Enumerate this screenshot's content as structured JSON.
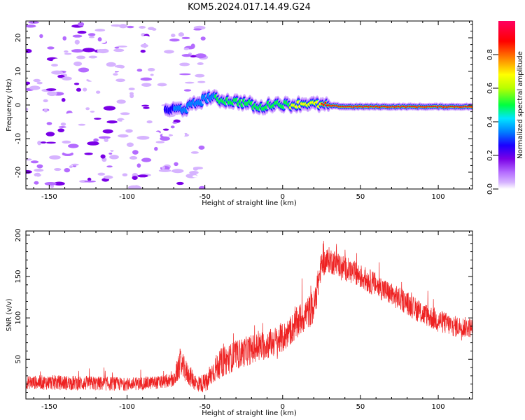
{
  "title": "KOM5.2024.017.14.49.G24",
  "colors": {
    "snr_line": "#ee2222",
    "spectrum_palette": [
      "#ffffff",
      "#d6b3ff",
      "#b46bff",
      "#7a00e6",
      "#1a00ff",
      "#0080ff",
      "#00e5ff",
      "#00ff40",
      "#b8ff00",
      "#ffff00",
      "#ff8000",
      "#ff0000",
      "#ff0060"
    ]
  },
  "chart_data": [
    {
      "type": "heatmap",
      "xlabel": "Height of straight line (km)",
      "ylabel": "Frequency (Hz)",
      "xlim": [
        -165,
        122
      ],
      "ylim": [
        -25,
        25
      ],
      "xticks": [
        -150,
        -100,
        -50,
        0,
        50,
        100
      ],
      "yticks": [
        -20,
        -10,
        0,
        10,
        20
      ],
      "colorbar": {
        "label": "Normalized spectral amplitude",
        "range": [
          0,
          1
        ],
        "ticks": [
          "0.0",
          "0.2",
          "0.4",
          "0.6",
          "0.8"
        ]
      },
      "noise_region_km": [
        -165,
        -50
      ],
      "dominant_trace": [
        {
          "x": -75,
          "y": -1.5,
          "amp": 0.35
        },
        {
          "x": -62,
          "y": -1.0,
          "amp": 0.4
        },
        {
          "x": -47,
          "y": 2.5,
          "amp": 0.45
        },
        {
          "x": -40,
          "y": 1.5,
          "amp": 0.55
        },
        {
          "x": -30,
          "y": 1.0,
          "amp": 0.6
        },
        {
          "x": -22,
          "y": 0.5,
          "amp": 0.55
        },
        {
          "x": -15,
          "y": -1.0,
          "amp": 0.5
        },
        {
          "x": -5,
          "y": 0.5,
          "amp": 0.6
        },
        {
          "x": 5,
          "y": 0.0,
          "amp": 0.7
        },
        {
          "x": 15,
          "y": 0.5,
          "amp": 0.75
        },
        {
          "x": 25,
          "y": 0.0,
          "amp": 0.85
        },
        {
          "x": 40,
          "y": -0.5,
          "amp": 0.95
        },
        {
          "x": 60,
          "y": -0.5,
          "amp": 0.95
        },
        {
          "x": 80,
          "y": -0.5,
          "amp": 0.95
        },
        {
          "x": 100,
          "y": -0.5,
          "amp": 0.95
        },
        {
          "x": 122,
          "y": -0.5,
          "amp": 0.95
        }
      ]
    },
    {
      "type": "line",
      "xlabel": "Height of straight line (km)",
      "ylabel": "SNR (v/v)",
      "xlim": [
        -165,
        122
      ],
      "ylim": [
        2,
        205
      ],
      "xticks": [
        -150,
        -100,
        -50,
        0,
        50,
        100
      ],
      "yticks": [
        50,
        100,
        150,
        200
      ],
      "series": [
        {
          "x": [
            -165,
            -150,
            -125,
            -100,
            -80,
            -70,
            -66,
            -62,
            -55,
            -48,
            -45,
            -40,
            -30,
            -20,
            -10,
            0,
            5,
            10,
            15,
            20,
            25,
            30,
            40,
            50,
            60,
            70,
            80,
            90,
            100,
            110,
            122
          ],
          "y": [
            22,
            22,
            21,
            20,
            22,
            24,
            45,
            35,
            20,
            22,
            35,
            45,
            55,
            62,
            68,
            75,
            85,
            95,
            105,
            112,
            165,
            170,
            160,
            150,
            140,
            128,
            118,
            105,
            97,
            90,
            88
          ],
          "noise_amplitude": [
            8,
            9,
            9,
            8,
            8,
            8,
            18,
            14,
            10,
            12,
            15,
            18,
            18,
            18,
            18,
            18,
            18,
            20,
            20,
            20,
            16,
            16,
            15,
            15,
            15,
            14,
            14,
            14,
            14,
            13,
            12
          ]
        }
      ]
    }
  ]
}
